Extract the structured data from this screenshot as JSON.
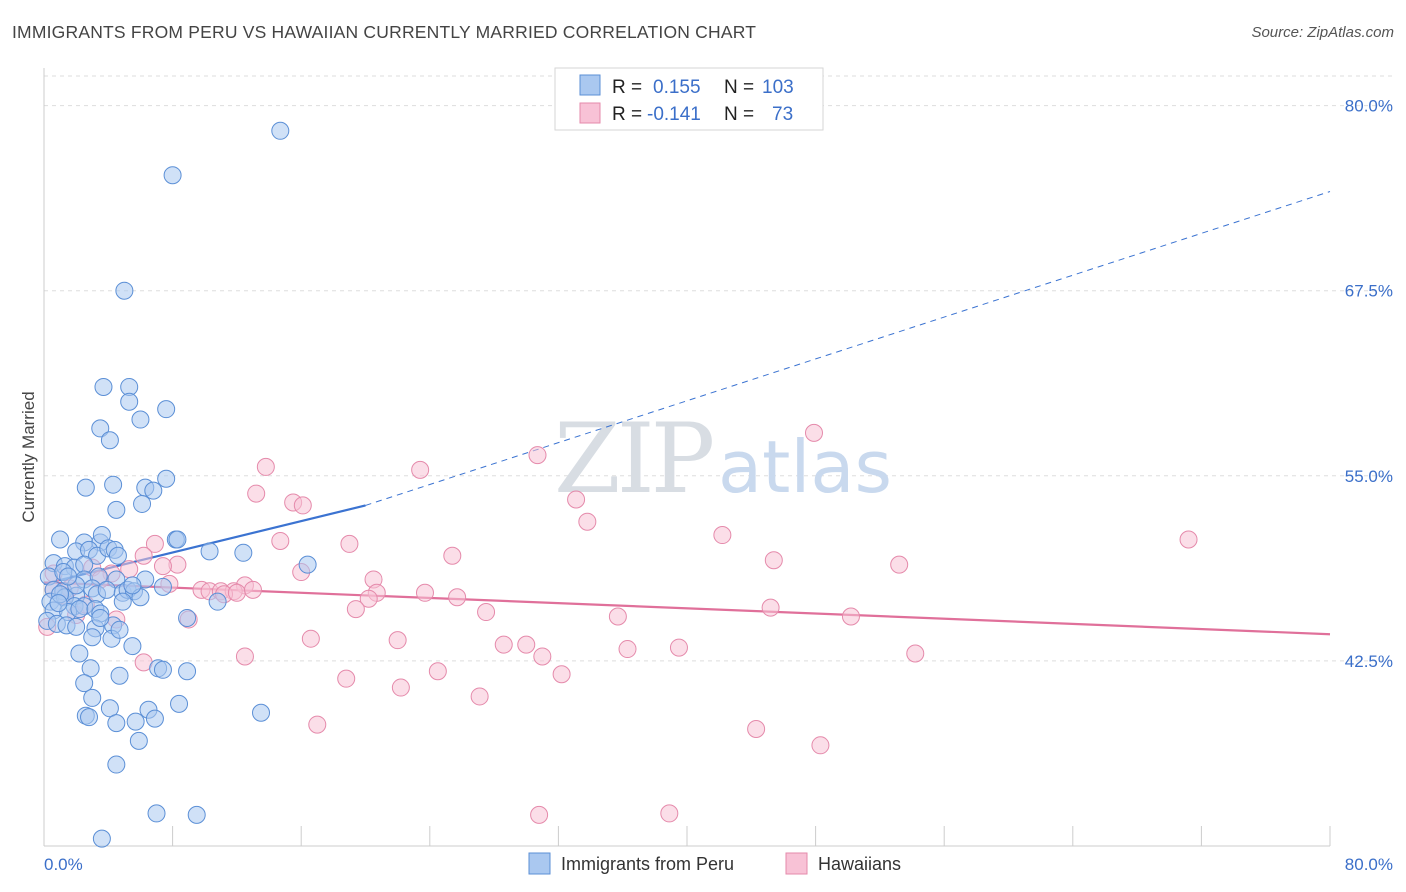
{
  "title": "IMMIGRANTS FROM PERU VS HAWAIIAN CURRENTLY MARRIED CORRELATION CHART",
  "source": "Source: ZipAtlas.com",
  "watermark": {
    "zip": "ZIP",
    "atlas": "atlas"
  },
  "legend": {
    "row1": {
      "r_label": "R =",
      "r_value": "0.155",
      "n_label": "N =",
      "n_value": "103"
    },
    "row2": {
      "r_label": "R =",
      "r_value": "-0.141",
      "n_label": "N =",
      "n_value": "73"
    }
  },
  "bottom_legend": [
    "Immigrants from Peru",
    "Hawaiians"
  ],
  "colors": {
    "blue_fill": "#aac8f0",
    "blue_stroke": "#5b8fd6",
    "blue_line": "#3b73d1",
    "pink_fill": "#f8c2d6",
    "pink_stroke": "#e58aab",
    "pink_line": "#e0709a",
    "grid": "#dddddd",
    "tick_text": "#3b6fc9"
  },
  "chart_data": {
    "type": "scatter",
    "title": "IMMIGRANTS FROM PERU VS HAWAIIAN CURRENTLY MARRIED CORRELATION CHART",
    "xlabel": "",
    "ylabel": "Currently Married",
    "xlim": [
      0,
      80
    ],
    "ylim": [
      30,
      82
    ],
    "y_ticks": [
      42.5,
      55.0,
      67.5,
      80.0
    ],
    "y_tick_labels": [
      "42.5%",
      "55.0%",
      "67.5%",
      "80.0%"
    ],
    "x_tick_labels": [
      "0.0%",
      "80.0%"
    ],
    "grid": true,
    "series": [
      {
        "name": "Immigrants from Peru",
        "color": "#aac8f0",
        "r": 0.155,
        "n": 103,
        "trend": {
          "x0": 0,
          "y0": 47.7,
          "x1": 20.0,
          "y1": 53.0,
          "dash_to_x": 80,
          "dash_to_y": 74.2
        },
        "points": [
          [
            14.7,
            78.3
          ],
          [
            8.0,
            75.3
          ],
          [
            5.0,
            67.5
          ],
          [
            3.7,
            61.0
          ],
          [
            5.3,
            61.0
          ],
          [
            5.3,
            60.0
          ],
          [
            7.6,
            59.5
          ],
          [
            6.0,
            58.8
          ],
          [
            3.5,
            58.2
          ],
          [
            4.1,
            57.4
          ],
          [
            7.6,
            54.8
          ],
          [
            2.6,
            54.2
          ],
          [
            4.3,
            54.4
          ],
          [
            6.3,
            54.2
          ],
          [
            6.8,
            54.0
          ],
          [
            6.1,
            53.1
          ],
          [
            4.5,
            52.7
          ],
          [
            1.0,
            50.7
          ],
          [
            2.5,
            50.5
          ],
          [
            3.5,
            50.5
          ],
          [
            3.6,
            51.0
          ],
          [
            8.2,
            50.7
          ],
          [
            8.3,
            50.7
          ],
          [
            10.3,
            49.9
          ],
          [
            12.4,
            49.8
          ],
          [
            2.0,
            49.9
          ],
          [
            2.8,
            50.0
          ],
          [
            3.3,
            49.6
          ],
          [
            4.0,
            50.1
          ],
          [
            4.4,
            50.0
          ],
          [
            4.6,
            49.6
          ],
          [
            0.6,
            49.1
          ],
          [
            1.3,
            48.9
          ],
          [
            1.9,
            48.8
          ],
          [
            2.5,
            49.0
          ],
          [
            16.4,
            49.0
          ],
          [
            0.3,
            48.2
          ],
          [
            1.2,
            48.5
          ],
          [
            2.5,
            48.0
          ],
          [
            3.4,
            48.2
          ],
          [
            4.5,
            48.0
          ],
          [
            6.3,
            48.0
          ],
          [
            7.4,
            47.5
          ],
          [
            0.6,
            47.3
          ],
          [
            1.2,
            47.2
          ],
          [
            2.0,
            46.9
          ],
          [
            3.0,
            47.4
          ],
          [
            3.3,
            47.0
          ],
          [
            3.9,
            47.3
          ],
          [
            4.9,
            47.1
          ],
          [
            5.2,
            47.3
          ],
          [
            5.6,
            47.2
          ],
          [
            6.0,
            46.8
          ],
          [
            0.4,
            46.5
          ],
          [
            1.3,
            46.8
          ],
          [
            1.9,
            46.2
          ],
          [
            2.5,
            46.2
          ],
          [
            0.6,
            45.9
          ],
          [
            1.5,
            45.8
          ],
          [
            2.2,
            46.0
          ],
          [
            3.2,
            46.0
          ],
          [
            3.5,
            45.7
          ],
          [
            4.9,
            46.5
          ],
          [
            10.8,
            46.5
          ],
          [
            0.2,
            45.2
          ],
          [
            0.8,
            45.0
          ],
          [
            1.4,
            44.9
          ],
          [
            2.0,
            44.8
          ],
          [
            3.2,
            44.7
          ],
          [
            4.3,
            44.9
          ],
          [
            3.5,
            45.4
          ],
          [
            8.9,
            45.4
          ],
          [
            3.0,
            44.1
          ],
          [
            4.2,
            44.0
          ],
          [
            4.7,
            44.6
          ],
          [
            5.5,
            43.5
          ],
          [
            7.1,
            42.0
          ],
          [
            7.4,
            41.9
          ],
          [
            8.9,
            41.8
          ],
          [
            2.2,
            43.0
          ],
          [
            2.9,
            42.0
          ],
          [
            4.7,
            41.5
          ],
          [
            2.5,
            41.0
          ],
          [
            3.0,
            40.0
          ],
          [
            8.4,
            39.6
          ],
          [
            4.1,
            39.3
          ],
          [
            6.5,
            39.2
          ],
          [
            2.6,
            38.8
          ],
          [
            2.8,
            38.7
          ],
          [
            13.5,
            39.0
          ],
          [
            4.5,
            38.3
          ],
          [
            5.7,
            38.4
          ],
          [
            6.9,
            38.6
          ],
          [
            5.9,
            37.1
          ],
          [
            4.5,
            35.5
          ],
          [
            7.0,
            32.2
          ],
          [
            9.5,
            32.1
          ],
          [
            3.6,
            30.5
          ],
          [
            1.0,
            47.0
          ],
          [
            2.0,
            47.6
          ],
          [
            1.5,
            48.2
          ],
          [
            0.9,
            46.4
          ],
          [
            5.5,
            47.6
          ]
        ]
      },
      {
        "name": "Hawaiians",
        "color": "#f8c2d6",
        "r": -0.141,
        "n": 73,
        "trend": {
          "x0": 0,
          "y0": 47.8,
          "x1": 80,
          "y1": 44.3
        },
        "points": [
          [
            47.9,
            57.9
          ],
          [
            30.7,
            56.4
          ],
          [
            13.8,
            55.6
          ],
          [
            23.4,
            55.4
          ],
          [
            13.2,
            53.8
          ],
          [
            33.1,
            53.4
          ],
          [
            15.5,
            53.2
          ],
          [
            16.1,
            53.0
          ],
          [
            33.8,
            51.9
          ],
          [
            42.2,
            51.0
          ],
          [
            71.2,
            50.7
          ],
          [
            14.7,
            50.6
          ],
          [
            19.0,
            50.4
          ],
          [
            6.9,
            50.4
          ],
          [
            25.4,
            49.6
          ],
          [
            6.2,
            49.6
          ],
          [
            45.4,
            49.3
          ],
          [
            8.3,
            49.0
          ],
          [
            7.4,
            48.9
          ],
          [
            53.2,
            49.0
          ],
          [
            16.0,
            48.5
          ],
          [
            3.0,
            48.8
          ],
          [
            5.3,
            48.7
          ],
          [
            4.2,
            48.4
          ],
          [
            0.6,
            48.4
          ],
          [
            20.5,
            48.0
          ],
          [
            3.5,
            48.0
          ],
          [
            7.8,
            47.7
          ],
          [
            12.5,
            47.6
          ],
          [
            9.8,
            47.3
          ],
          [
            10.3,
            47.2
          ],
          [
            11.0,
            47.2
          ],
          [
            11.8,
            47.2
          ],
          [
            11.2,
            47.0
          ],
          [
            12.0,
            47.1
          ],
          [
            13.0,
            47.3
          ],
          [
            20.7,
            47.1
          ],
          [
            23.7,
            47.1
          ],
          [
            20.2,
            46.7
          ],
          [
            25.7,
            46.8
          ],
          [
            45.2,
            46.1
          ],
          [
            19.4,
            46.0
          ],
          [
            27.5,
            45.8
          ],
          [
            35.7,
            45.5
          ],
          [
            50.2,
            45.5
          ],
          [
            9.0,
            45.3
          ],
          [
            4.5,
            45.3
          ],
          [
            2.0,
            45.6
          ],
          [
            0.2,
            44.8
          ],
          [
            16.6,
            44.0
          ],
          [
            22.0,
            43.9
          ],
          [
            28.6,
            43.6
          ],
          [
            30.0,
            43.6
          ],
          [
            36.3,
            43.3
          ],
          [
            39.5,
            43.4
          ],
          [
            54.2,
            43.0
          ],
          [
            31.0,
            42.8
          ],
          [
            6.2,
            42.4
          ],
          [
            12.5,
            42.8
          ],
          [
            24.5,
            41.8
          ],
          [
            32.2,
            41.6
          ],
          [
            18.8,
            41.3
          ],
          [
            22.2,
            40.7
          ],
          [
            27.1,
            40.1
          ],
          [
            17.0,
            38.2
          ],
          [
            44.3,
            37.9
          ],
          [
            48.3,
            36.8
          ],
          [
            30.8,
            32.1
          ],
          [
            38.9,
            32.2
          ],
          [
            1.3,
            46.9
          ],
          [
            2.6,
            46.3
          ],
          [
            1.6,
            47.4
          ],
          [
            0.6,
            47.3
          ]
        ]
      }
    ]
  }
}
